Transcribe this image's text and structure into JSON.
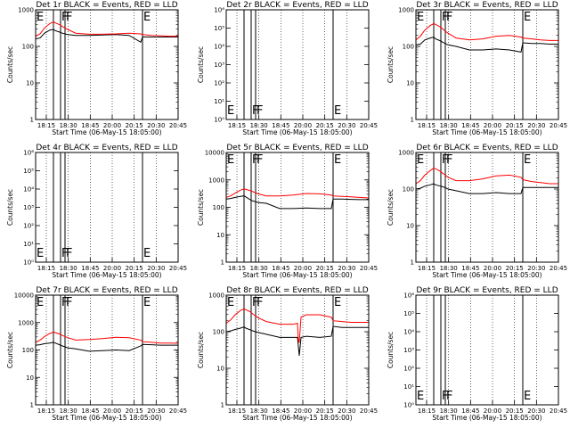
{
  "chart_data": {
    "type": "line",
    "layout": "3x3 grid",
    "xlabel": "Start Time (06-May-15 18:05:00)",
    "ylabel": "Counts/sec",
    "x_tick_labels": [
      "18:15",
      "18:30",
      "18:45",
      "20:00",
      "20:15",
      "20:30",
      "20:45"
    ],
    "x_range_minutes": [
      0,
      160
    ],
    "event_lines_minutes": [
      20,
      28,
      33,
      120
    ],
    "event_flags": [
      {
        "label": "E",
        "minute": 0
      },
      {
        "label": "F",
        "minute": 28
      },
      {
        "label": "F",
        "minute": 33
      },
      {
        "label": "E",
        "minute": 120
      }
    ],
    "series_colors": {
      "events": "#000000",
      "lld": "#ff0000",
      "flags": "#000000"
    },
    "panels": [
      {
        "title": "Det 1r BLACK = Events, RED = LLD",
        "y_scale": "log",
        "ylim": [
          1,
          1000
        ],
        "y_tick_labels": [
          "1",
          "10",
          "100",
          "1000"
        ],
        "events": {
          "x": [
            0,
            5,
            10,
            16,
            20,
            22,
            28,
            30,
            33,
            36,
            45,
            60,
            75,
            90,
            105,
            118,
            120,
            130,
            140,
            150,
            160
          ],
          "y": [
            160,
            170,
            230,
            280,
            290,
            270,
            240,
            230,
            220,
            210,
            200,
            200,
            205,
            210,
            200,
            130,
            180,
            180,
            180,
            180,
            180
          ]
        },
        "lld": {
          "x": [
            0,
            5,
            10,
            16,
            20,
            22,
            28,
            30,
            33,
            36,
            45,
            60,
            75,
            90,
            105,
            118,
            120,
            130,
            140,
            150,
            160
          ],
          "y": [
            190,
            220,
            320,
            420,
            470,
            440,
            380,
            350,
            320,
            290,
            230,
            215,
            215,
            220,
            230,
            220,
            210,
            200,
            195,
            190,
            190
          ]
        }
      },
      {
        "title": "Det 2r BLACK = Events, RED = LLD",
        "y_scale": "log",
        "ylim": [
          1,
          1000000
        ],
        "y_tick_labels": [
          "10⁰",
          "10¹",
          "10²",
          "10³",
          "10⁴",
          "10⁵",
          "10⁶"
        ],
        "events": null,
        "lld": null
      },
      {
        "title": "Det 3r BLACK = Events, RED = LLD",
        "y_scale": "log",
        "ylim": [
          1,
          1000
        ],
        "y_tick_labels": [
          "1",
          "10",
          "100",
          "1000"
        ],
        "events": {
          "x": [
            0,
            5,
            10,
            16,
            20,
            22,
            28,
            30,
            33,
            36,
            45,
            60,
            75,
            90,
            105,
            118,
            120,
            130,
            140,
            150,
            160
          ],
          "y": [
            110,
            115,
            150,
            170,
            180,
            160,
            140,
            130,
            120,
            110,
            100,
            80,
            80,
            85,
            80,
            70,
            125,
            120,
            120,
            115,
            115
          ]
        },
        "lld": {
          "x": [
            0,
            5,
            10,
            16,
            20,
            22,
            28,
            30,
            33,
            36,
            45,
            60,
            75,
            90,
            105,
            118,
            120,
            130,
            140,
            150,
            160
          ],
          "y": [
            150,
            190,
            280,
            370,
            420,
            400,
            330,
            300,
            260,
            230,
            170,
            150,
            160,
            190,
            200,
            180,
            170,
            160,
            150,
            145,
            145
          ]
        }
      },
      {
        "title": "Det 4r BLACK = Events, RED = LLD",
        "y_scale": "log",
        "ylim": [
          1,
          1000000
        ],
        "y_tick_labels": [
          "10⁰",
          "10¹",
          "10²",
          "10³",
          "10⁴",
          "10⁵",
          "10⁶"
        ],
        "events": null,
        "lld": null
      },
      {
        "title": "Det 5r BLACK = Events, RED = LLD",
        "y_scale": "log",
        "ylim": [
          1,
          10000
        ],
        "y_tick_labels": [
          "1",
          "10",
          "100",
          "1000",
          "10000"
        ],
        "events": {
          "x": [
            0,
            5,
            10,
            16,
            20,
            22,
            28,
            30,
            33,
            36,
            45,
            60,
            75,
            90,
            105,
            118,
            120,
            130,
            140,
            150,
            160
          ],
          "y": [
            200,
            210,
            230,
            250,
            260,
            240,
            180,
            170,
            160,
            150,
            140,
            90,
            90,
            95,
            90,
            90,
            200,
            200,
            195,
            190,
            190
          ]
        },
        "lld": {
          "x": [
            0,
            5,
            10,
            16,
            20,
            22,
            28,
            30,
            33,
            36,
            45,
            60,
            75,
            90,
            105,
            118,
            120,
            130,
            140,
            150,
            160
          ],
          "y": [
            230,
            260,
            330,
            420,
            470,
            450,
            400,
            370,
            340,
            310,
            260,
            260,
            280,
            320,
            310,
            280,
            260,
            250,
            240,
            230,
            220
          ]
        }
      },
      {
        "title": "Det 6r BLACK = Events, RED = LLD",
        "y_scale": "log",
        "ylim": [
          1,
          1000
        ],
        "y_tick_labels": [
          "1",
          "10",
          "100",
          "1000"
        ],
        "events": {
          "x": [
            0,
            5,
            10,
            16,
            20,
            22,
            28,
            30,
            33,
            36,
            45,
            60,
            75,
            90,
            105,
            118,
            120,
            130,
            140,
            150,
            160
          ],
          "y": [
            100,
            105,
            120,
            130,
            140,
            130,
            120,
            115,
            110,
            100,
            90,
            75,
            75,
            80,
            75,
            75,
            110,
            110,
            110,
            110,
            110
          ]
        },
        "lld": {
          "x": [
            0,
            5,
            10,
            16,
            20,
            22,
            28,
            30,
            33,
            36,
            45,
            60,
            75,
            90,
            105,
            118,
            120,
            130,
            140,
            150,
            160
          ],
          "y": [
            140,
            170,
            240,
            320,
            370,
            360,
            300,
            270,
            240,
            210,
            170,
            170,
            190,
            230,
            240,
            210,
            180,
            160,
            150,
            140,
            140
          ]
        }
      },
      {
        "title": "Det 7r BLACK = Events, RED = LLD",
        "y_scale": "log",
        "ylim": [
          1,
          10000
        ],
        "y_tick_labels": [
          "1",
          "10",
          "100",
          "1000",
          "10000"
        ],
        "events": {
          "x": [
            0,
            5,
            10,
            16,
            20,
            22,
            28,
            30,
            33,
            36,
            45,
            60,
            75,
            90,
            105,
            118,
            120,
            130,
            140,
            150,
            160
          ],
          "y": [
            150,
            155,
            170,
            180,
            190,
            180,
            150,
            140,
            130,
            120,
            110,
            90,
            95,
            100,
            95,
            140,
            160,
            155,
            150,
            150,
            150
          ]
        },
        "lld": {
          "x": [
            0,
            5,
            10,
            16,
            20,
            22,
            28,
            30,
            33,
            36,
            45,
            60,
            75,
            90,
            105,
            118,
            120,
            130,
            140,
            150,
            160
          ],
          "y": [
            190,
            230,
            310,
            400,
            450,
            430,
            370,
            340,
            310,
            280,
            230,
            240,
            260,
            290,
            280,
            230,
            200,
            190,
            180,
            180,
            175
          ]
        }
      },
      {
        "title": "Det 8r BLACK = Events, RED = LLD",
        "y_scale": "log",
        "ylim": [
          1,
          1000
        ],
        "y_tick_labels": [
          "1",
          "10",
          "100",
          "1000"
        ],
        "events": {
          "x": [
            0,
            5,
            10,
            16,
            20,
            22,
            28,
            30,
            33,
            36,
            45,
            60,
            75,
            80,
            81,
            82,
            84,
            90,
            105,
            118,
            120,
            130,
            140,
            150,
            160
          ],
          "y": [
            100,
            105,
            115,
            125,
            135,
            125,
            110,
            105,
            100,
            95,
            85,
            70,
            70,
            70,
            40,
            22,
            70,
            75,
            70,
            75,
            140,
            130,
            130,
            130,
            130
          ]
        },
        "lld": {
          "x": [
            0,
            5,
            10,
            16,
            20,
            22,
            28,
            30,
            33,
            36,
            45,
            60,
            75,
            80,
            81,
            82,
            84,
            90,
            105,
            118,
            120,
            130,
            140,
            150,
            160
          ],
          "y": [
            170,
            210,
            290,
            380,
            420,
            400,
            340,
            300,
            270,
            240,
            190,
            160,
            160,
            170,
            60,
            50,
            250,
            290,
            290,
            250,
            200,
            190,
            180,
            180,
            180
          ]
        }
      },
      {
        "title": "Det 9r BLACK = Events, RED = LLD",
        "y_scale": "log",
        "ylim": [
          1,
          1000000
        ],
        "y_tick_labels": [
          "10⁰",
          "10¹",
          "10²",
          "10³",
          "10⁴",
          "10⁵",
          "10⁶"
        ],
        "events": null,
        "lld": null
      }
    ]
  }
}
